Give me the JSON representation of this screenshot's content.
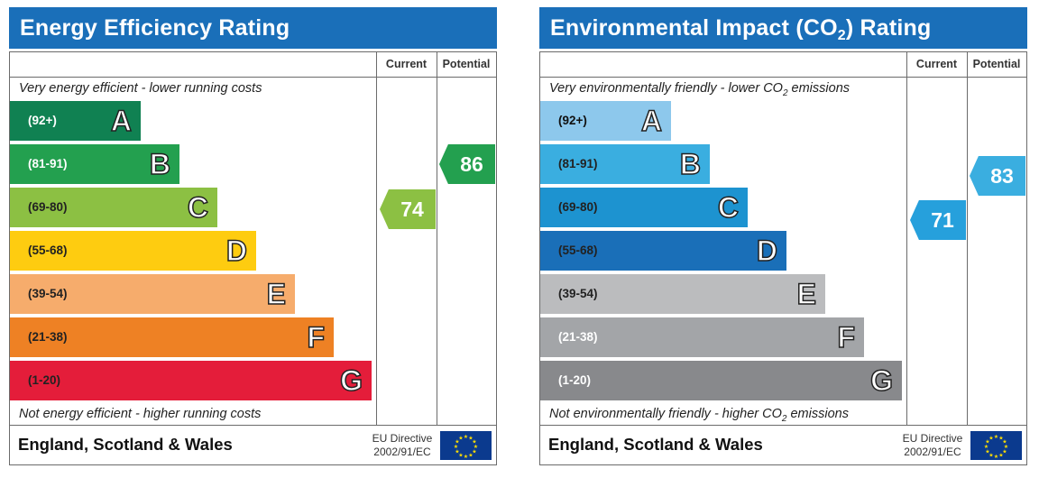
{
  "chart_data": [
    {
      "type": "bar",
      "title": "Energy Efficiency Rating",
      "columns": [
        "Current",
        "Potential"
      ],
      "top_note": "Very energy efficient - lower running costs",
      "bottom_note": "Not energy efficient - higher running costs",
      "categories": [
        "A",
        "B",
        "C",
        "D",
        "E",
        "F",
        "G"
      ],
      "ranges": [
        "(92+)",
        "(81-91)",
        "(69-80)",
        "(55-68)",
        "(39-54)",
        "(21-38)",
        "(1-20)"
      ],
      "colors": [
        "#108152",
        "#23a04f",
        "#8cc043",
        "#fecc10",
        "#f6ac6c",
        "#ee8124",
        "#e41d3a"
      ],
      "range_text_colors": [
        "#ffffff",
        "#ffffff",
        "#222222",
        "#222222",
        "#222222",
        "#222222",
        "#222222"
      ],
      "current": {
        "value": 74,
        "band": "C",
        "color": "#8cc043"
      },
      "potential": {
        "value": 86,
        "band": "B",
        "color": "#23a04f"
      },
      "footer": "England, Scotland & Wales",
      "directive": [
        "EU Directive",
        "2002/91/EC"
      ]
    },
    {
      "type": "bar",
      "title": "Environmental Impact (CO2) Rating",
      "columns": [
        "Current",
        "Potential"
      ],
      "top_note": "Very environmentally friendly - lower CO2 emissions",
      "bottom_note": "Not environmentally friendly - higher CO2 emissions",
      "categories": [
        "A",
        "B",
        "C",
        "D",
        "E",
        "F",
        "G"
      ],
      "ranges": [
        "(92+)",
        "(81-91)",
        "(69-80)",
        "(55-68)",
        "(39-54)",
        "(21-38)",
        "(1-20)"
      ],
      "colors": [
        "#8dc8ec",
        "#3aaee0",
        "#1d93d0",
        "#1a6fb8",
        "#bbbcbe",
        "#a3a5a8",
        "#88898c"
      ],
      "range_text_colors": [
        "#111111",
        "#222222",
        "#222222",
        "#222222",
        "#222222",
        "#ffffff",
        "#ffffff"
      ],
      "current": {
        "value": 71,
        "band": "C",
        "color": "#26a0dc"
      },
      "potential": {
        "value": 83,
        "band": "B",
        "color": "#3aaee0"
      },
      "footer": "England, Scotland & Wales",
      "directive": [
        "EU Directive",
        "2002/91/EC"
      ]
    }
  ]
}
